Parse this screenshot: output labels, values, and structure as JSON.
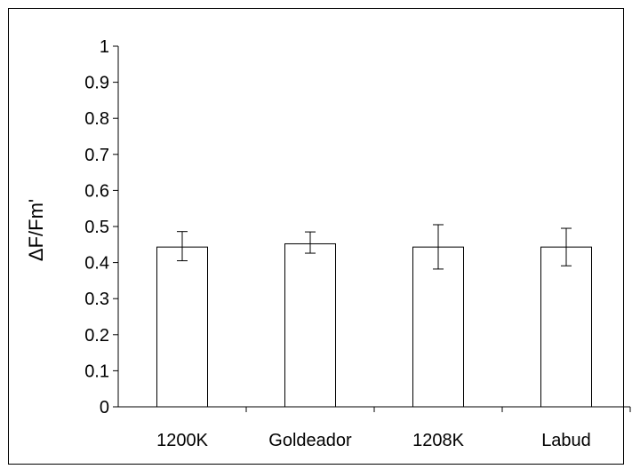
{
  "chart_data": {
    "type": "bar",
    "title": "",
    "xlabel": "",
    "ylabel": "ΔF/Fm'",
    "categories": [
      "1200K",
      "Goldeador",
      "1208K",
      "Labud"
    ],
    "values": [
      0.443,
      0.452,
      0.443,
      0.443
    ],
    "error_low": [
      0.405,
      0.426,
      0.382,
      0.391
    ],
    "error_high": [
      0.486,
      0.485,
      0.505,
      0.495
    ],
    "ylim": [
      0,
      1
    ],
    "yticks": [
      "0",
      "0.1",
      "0.2",
      "0.3",
      "0.4",
      "0.5",
      "0.6",
      "0.7",
      "0.8",
      "0.9",
      "1"
    ],
    "grid": false,
    "legend": "none",
    "colors": {
      "bar_fill": "#ffffff",
      "bar_stroke": "#000000",
      "axis": "#000000",
      "border": "#000000"
    }
  }
}
